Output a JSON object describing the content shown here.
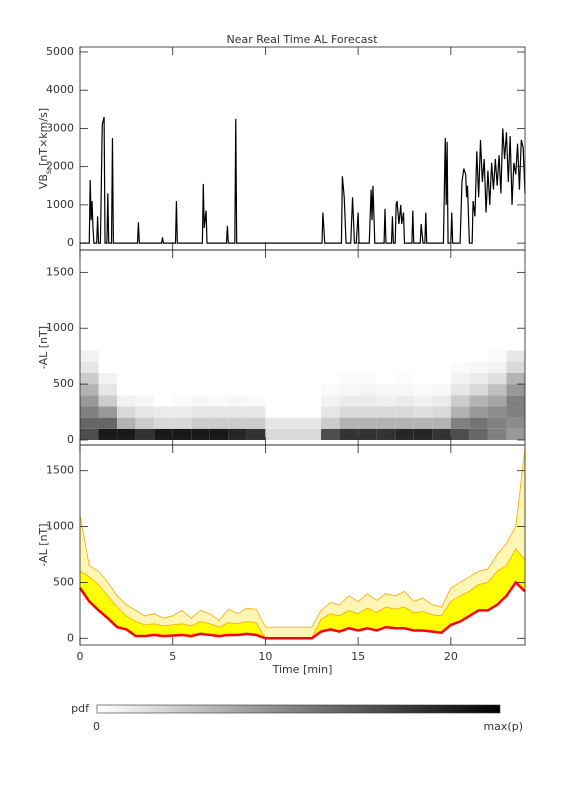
{
  "chart_data": [
    {
      "type": "line",
      "title": "Near Real Time AL Forecast",
      "ylabel": "VB",
      "ylabel_sub": "s",
      "ylabel_unit": "[nT×km/s]",
      "color": "#000000",
      "xlim": [
        0,
        24
      ],
      "ylim": [
        -180,
        5130
      ],
      "yticks": [
        0,
        1000,
        2000,
        3000,
        4000,
        5000
      ],
      "x": [
        0,
        0.5,
        0.55,
        0.6,
        0.65,
        0.7,
        0.75,
        0.9,
        0.95,
        1.0,
        1.1,
        1.2,
        1.3,
        1.35,
        1.45,
        1.5,
        1.55,
        1.7,
        1.75,
        1.8,
        3.1,
        3.15,
        3.2,
        4.4,
        4.45,
        4.5,
        5.15,
        5.2,
        5.25,
        6.6,
        6.65,
        6.7,
        6.8,
        6.85,
        7.9,
        7.95,
        8.0,
        8.35,
        8.4,
        8.45,
        13.05,
        13.1,
        13.2,
        14.1,
        14.15,
        14.25,
        14.35,
        14.6,
        14.7,
        14.8,
        14.9,
        15.0,
        15.05,
        15.6,
        15.7,
        15.75,
        15.8,
        15.9,
        16.4,
        16.45,
        16.5,
        16.8,
        16.85,
        16.9,
        17.0,
        17.05,
        17.1,
        17.2,
        17.3,
        17.35,
        17.45,
        17.5,
        17.9,
        17.95,
        18.0,
        18.35,
        18.4,
        18.5,
        18.6,
        18.65,
        18.7,
        19.6,
        19.7,
        19.75,
        19.8,
        19.85,
        20.0,
        20.05,
        20.1,
        20.5,
        20.6,
        20.7,
        20.8,
        20.85,
        20.9,
        21.0,
        21.15,
        21.2,
        21.3,
        21.4,
        21.5,
        21.6,
        21.7,
        21.8,
        21.9,
        22.0,
        22.1,
        22.2,
        22.3,
        22.4,
        22.5,
        22.6,
        22.7,
        22.8,
        22.9,
        23.0,
        23.1,
        23.2,
        23.3,
        23.4,
        23.5,
        23.6,
        23.7,
        23.8,
        23.9,
        24.0
      ],
      "values": [
        0,
        0,
        1650,
        600,
        1100,
        400,
        0,
        0,
        700,
        0,
        0,
        3100,
        3300,
        0,
        0,
        1300,
        0,
        0,
        2750,
        0,
        0,
        550,
        0,
        0,
        150,
        0,
        0,
        1100,
        0,
        0,
        1550,
        400,
        850,
        0,
        0,
        450,
        0,
        0,
        3250,
        0,
        0,
        800,
        0,
        0,
        1750,
        1200,
        0,
        0,
        1200,
        0,
        0,
        800,
        0,
        0,
        1400,
        600,
        1500,
        0,
        0,
        900,
        0,
        0,
        700,
        0,
        0,
        1000,
        1100,
        500,
        1000,
        500,
        800,
        0,
        0,
        850,
        0,
        0,
        500,
        0,
        0,
        800,
        0,
        0,
        2750,
        1000,
        2650,
        0,
        0,
        800,
        0,
        0,
        1600,
        1950,
        1800,
        1200,
        1500,
        0,
        0,
        1100,
        700,
        2400,
        1200,
        2700,
        1600,
        2200,
        800,
        1900,
        1000,
        2100,
        1400,
        2200,
        1500,
        2300,
        1300,
        3000,
        2200,
        2900,
        1600,
        2800,
        1000,
        2100,
        1800,
        2600,
        1400,
        2700,
        2500,
        1300
      ]
    },
    {
      "type": "heatmap",
      "ylabel": "-AL [nT]",
      "xlim": [
        0,
        24
      ],
      "ylim": [
        -45,
        1700
      ],
      "yticks": [
        0,
        500,
        1000,
        1500
      ],
      "xbins": [
        0,
        1,
        2,
        3,
        4,
        5,
        6,
        7,
        8,
        9,
        10,
        11,
        12,
        13,
        14,
        15,
        16,
        17,
        18,
        19,
        20,
        21,
        22,
        23,
        24
      ],
      "ybins": [
        0,
        100,
        200,
        300,
        400,
        500,
        600,
        700,
        800
      ],
      "values": [
        [
          0.7,
          0.6,
          0.5,
          0.4,
          0.3,
          0.2,
          0.1,
          0.05
        ],
        [
          0.9,
          0.6,
          0.4,
          0.2,
          0.1,
          0.05,
          0,
          0
        ],
        [
          0.9,
          0.3,
          0.15,
          0.05,
          0,
          0,
          0,
          0
        ],
        [
          0.8,
          0.2,
          0.1,
          0.03,
          0,
          0,
          0,
          0
        ],
        [
          0.9,
          0.15,
          0.08,
          0,
          0,
          0,
          0,
          0
        ],
        [
          0.9,
          0.15,
          0.08,
          0.02,
          0,
          0,
          0,
          0
        ],
        [
          0.9,
          0.2,
          0.1,
          0.03,
          0,
          0,
          0,
          0
        ],
        [
          0.9,
          0.2,
          0.1,
          0.02,
          0,
          0,
          0,
          0
        ],
        [
          0.85,
          0.2,
          0.1,
          0.03,
          0,
          0,
          0,
          0
        ],
        [
          0.8,
          0.2,
          0.1,
          0.02,
          0,
          0,
          0,
          0
        ],
        [
          0.15,
          0.1,
          0,
          0,
          0,
          0,
          0,
          0
        ],
        [
          0.15,
          0.1,
          0,
          0,
          0,
          0,
          0,
          0
        ],
        [
          0.15,
          0.1,
          0,
          0,
          0,
          0,
          0,
          0
        ],
        [
          0.7,
          0.2,
          0.1,
          0.05,
          0.02,
          0,
          0,
          0
        ],
        [
          0.8,
          0.3,
          0.15,
          0.08,
          0.03,
          0.02,
          0,
          0
        ],
        [
          0.8,
          0.3,
          0.15,
          0.08,
          0.04,
          0.02,
          0,
          0
        ],
        [
          0.8,
          0.3,
          0.15,
          0.06,
          0.03,
          0,
          0,
          0
        ],
        [
          0.85,
          0.3,
          0.15,
          0.08,
          0.03,
          0.01,
          0,
          0
        ],
        [
          0.85,
          0.3,
          0.12,
          0.05,
          0.02,
          0,
          0,
          0
        ],
        [
          0.8,
          0.3,
          0.15,
          0.08,
          0.03,
          0,
          0,
          0
        ],
        [
          0.7,
          0.5,
          0.3,
          0.2,
          0.1,
          0.05,
          0.02,
          0
        ],
        [
          0.6,
          0.55,
          0.4,
          0.3,
          0.15,
          0.08,
          0.03,
          0
        ],
        [
          0.5,
          0.5,
          0.45,
          0.35,
          0.25,
          0.12,
          0.05,
          0.02
        ],
        [
          0.4,
          0.45,
          0.5,
          0.5,
          0.4,
          0.3,
          0.15,
          0.1
        ]
      ],
      "colorbar": {
        "label": "pdf",
        "range_labels": [
          "0",
          "max(p)"
        ],
        "colors": [
          "#ffffff",
          "#000000"
        ]
      }
    },
    {
      "type": "area",
      "ylabel": "-AL [nT]",
      "xlabel": "Time [min]",
      "xlim": [
        0,
        24
      ],
      "ylim": [
        -60,
        1730
      ],
      "yticks": [
        0,
        500,
        1000,
        1500
      ],
      "xticks": [
        0,
        5,
        10,
        15,
        20
      ],
      "x": [
        0,
        0.5,
        1,
        1.5,
        2,
        2.5,
        3,
        3.5,
        4,
        4.5,
        5,
        5.5,
        6,
        6.5,
        7,
        7.5,
        8,
        8.5,
        9,
        9.5,
        10,
        10.5,
        11,
        11.5,
        12,
        12.5,
        13,
        13.5,
        14,
        14.5,
        15,
        15.5,
        16,
        16.5,
        17,
        17.5,
        18,
        18.5,
        19,
        19.5,
        20,
        20.5,
        21,
        21.5,
        22,
        22.5,
        23,
        23.5,
        24
      ],
      "series": [
        {
          "color": "#ff0000",
          "values": [
            450,
            330,
            250,
            180,
            100,
            80,
            20,
            20,
            30,
            20,
            25,
            30,
            20,
            40,
            30,
            20,
            30,
            30,
            40,
            30,
            0,
            0,
            0,
            0,
            0,
            0,
            60,
            80,
            60,
            90,
            70,
            90,
            70,
            100,
            90,
            90,
            70,
            70,
            60,
            50,
            120,
            150,
            200,
            250,
            250,
            300,
            380,
            500,
            420
          ]
        },
        {
          "color": "#ffff00",
          "line_color": "#ffa500",
          "values": [
            600,
            550,
            480,
            380,
            280,
            200,
            150,
            120,
            130,
            110,
            120,
            130,
            110,
            150,
            130,
            100,
            140,
            130,
            150,
            140,
            0,
            0,
            0,
            0,
            0,
            0,
            170,
            220,
            200,
            250,
            220,
            270,
            230,
            280,
            260,
            280,
            230,
            240,
            210,
            200,
            330,
            380,
            420,
            480,
            500,
            600,
            650,
            800,
            700
          ]
        },
        {
          "color": "#fff5b4",
          "line_color": "#ffa500",
          "values": [
            1100,
            650,
            600,
            500,
            380,
            300,
            250,
            200,
            220,
            180,
            200,
            250,
            180,
            250,
            220,
            160,
            260,
            220,
            270,
            260,
            100,
            100,
            100,
            100,
            100,
            100,
            250,
            320,
            300,
            380,
            330,
            400,
            340,
            400,
            380,
            420,
            330,
            360,
            300,
            280,
            450,
            500,
            550,
            600,
            620,
            750,
            850,
            1000,
            1700
          ]
        }
      ]
    }
  ]
}
